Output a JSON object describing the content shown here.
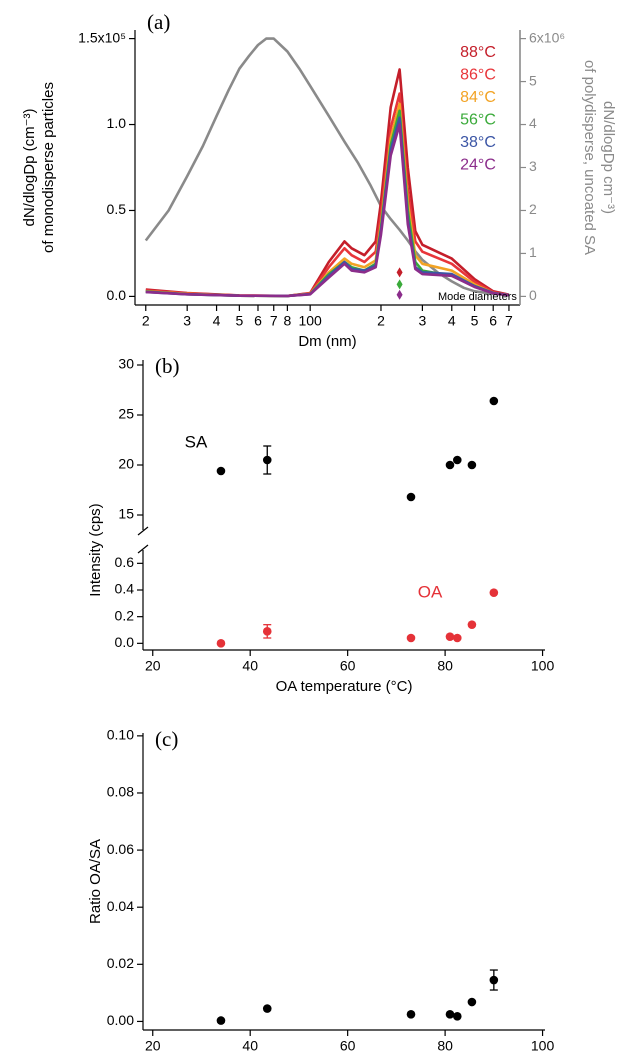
{
  "chart_data": [
    {
      "type": "line",
      "panel": "(a)",
      "xlabel": "Dm (nm)",
      "ylabel": [
        "dN/dlogDp (cm⁻³)",
        "of monodisperse particles"
      ],
      "y2label": [
        "dN/dlogDp cm⁻³)",
        "of polydisperse, uncoated SA"
      ],
      "xscale": "log",
      "xlim": [
        18,
        780
      ],
      "xticks": [
        {
          "value": 20,
          "label": "2"
        },
        {
          "value": 30,
          "label": "3"
        },
        {
          "value": 40,
          "label": "4"
        },
        {
          "value": 50,
          "label": "5"
        },
        {
          "value": 60,
          "label": "6"
        },
        {
          "value": 70,
          "label": "7"
        },
        {
          "value": 80,
          "label": "8"
        },
        100,
        {
          "value": 200,
          "label": "2"
        },
        {
          "value": 300,
          "label": "3"
        },
        {
          "value": 400,
          "label": "4"
        },
        {
          "value": 500,
          "label": "5"
        },
        {
          "value": 600,
          "label": "6"
        },
        {
          "value": 700,
          "label": "7"
        }
      ],
      "ylim": [
        -5000,
        155000
      ],
      "yticks": [
        {
          "value": 0,
          "label": "0.0"
        },
        {
          "value": 50000,
          "label": "0.5"
        },
        {
          "value": 100000,
          "label": "1.0"
        },
        {
          "value": 150000,
          "label": "1.5x10⁵"
        }
      ],
      "y2lim": [
        -200000,
        6200000
      ],
      "y2ticks": [
        0,
        {
          "value": 1000000,
          "label": "1"
        },
        {
          "value": 2000000,
          "label": "2"
        },
        {
          "value": 3000000,
          "label": "3"
        },
        {
          "value": 4000000,
          "label": "4"
        },
        {
          "value": 5000000,
          "label": "5"
        },
        {
          "value": 6000000,
          "label": "6x10⁶"
        }
      ],
      "y2color": "#8a8a8a",
      "x": [
        20,
        30,
        50,
        80,
        100,
        120,
        140,
        150,
        170,
        190,
        200,
        220,
        240,
        260,
        280,
        300,
        400,
        500,
        600,
        700
      ],
      "series": [
        {
          "color": "#8a8a8a",
          "axis": "y2",
          "x": [
            20,
            25,
            30,
            35,
            40,
            45,
            50,
            55,
            60,
            65,
            70,
            80,
            90,
            100,
            120,
            140,
            160,
            180,
            200,
            220,
            240,
            260,
            280,
            300,
            350,
            400,
            450,
            500,
            600,
            700
          ],
          "values": [
            1300000,
            2000000,
            2800000,
            3500000,
            4200000,
            4800000,
            5300000,
            5600000,
            5850000,
            6000000,
            6000000,
            5700000,
            5300000,
            4900000,
            4200000,
            3600000,
            3100000,
            2600000,
            2100000,
            1800000,
            1550000,
            1300000,
            1050000,
            850000,
            550000,
            350000,
            200000,
            120000,
            60000,
            30000
          ]
        },
        {
          "name": "88°C",
          "color": "#c41e2a",
          "values": [
            4000,
            2000,
            600,
            300,
            2000,
            20000,
            32000,
            28000,
            24000,
            32000,
            55000,
            110000,
            132000,
            75000,
            38000,
            30000,
            22000,
            10000,
            3000,
            1000
          ]
        },
        {
          "name": "86°C",
          "color": "#e8353a",
          "values": [
            3500,
            1800,
            500,
            300,
            1800,
            17000,
            28000,
            24000,
            20000,
            26000,
            48000,
            98000,
            118000,
            62000,
            32000,
            26000,
            19000,
            8500,
            2500,
            900
          ]
        },
        {
          "name": "84°C",
          "color": "#f2a324",
          "values": [
            3000,
            1500,
            400,
            300,
            1500,
            14000,
            22000,
            19000,
            17000,
            21000,
            42000,
            92000,
            112000,
            55000,
            24000,
            19000,
            15000,
            7000,
            2000,
            800
          ]
        },
        {
          "name": "56°C",
          "color": "#3aaa3a",
          "values": [
            2800,
            1300,
            400,
            300,
            1400,
            13000,
            20000,
            17000,
            15000,
            19000,
            40000,
            88000,
            108000,
            50000,
            20000,
            15000,
            12000,
            6000,
            2000,
            800
          ]
        },
        {
          "name": "38°C",
          "color": "#3b55a5",
          "values": [
            2600,
            1200,
            400,
            300,
            1300,
            12000,
            20000,
            16000,
            15000,
            18000,
            38000,
            85000,
            104000,
            45000,
            17000,
            14000,
            13000,
            6000,
            2000,
            800
          ]
        },
        {
          "name": "24°C",
          "color": "#8b2d8b",
          "values": [
            2500,
            1200,
            400,
            300,
            1200,
            11000,
            19000,
            15000,
            14000,
            17000,
            36000,
            82000,
            100000,
            42000,
            16000,
            13000,
            12000,
            5500,
            1800,
            700
          ]
        }
      ],
      "mode_diameters": {
        "label": "Mode diameters",
        "x": [
          240,
          240,
          240
        ],
        "values": [
          14000,
          7000,
          1000
        ],
        "colors": [
          "#c41e2a",
          "#3aaa3a",
          "#8b2d8b"
        ]
      }
    },
    {
      "type": "scatter",
      "panel": "(b)",
      "xlabel": "OA temperature (°C)",
      "ylabel": "Intensity (cps)",
      "xlim": [
        18,
        100.5
      ],
      "xticks": [
        20,
        40,
        60,
        80,
        100
      ],
      "ylim": [
        13.5,
        30.5
      ],
      "yticks": [
        15,
        20,
        25,
        30
      ],
      "ylim_lower": [
        -0.05,
        0.7
      ],
      "yticks_lower": [
        {
          "value": 0,
          "label": "0.0"
        },
        0.2,
        0.4,
        0.6
      ],
      "series": [
        {
          "name": "SA",
          "color": "#000000",
          "x": [
            34,
            43.5,
            73,
            81,
            82.5,
            85.5,
            90
          ],
          "values": [
            19.4,
            20.5,
            16.8,
            20,
            20.5,
            20,
            26.4
          ],
          "errors": [
            null,
            1.4,
            null,
            null,
            null,
            null,
            null
          ]
        },
        {
          "name": "OA",
          "color": "#e53238",
          "x": [
            34,
            43.5,
            73,
            81,
            82.5,
            85.5,
            90
          ],
          "values": [
            0.0,
            0.09,
            0.04,
            0.05,
            0.04,
            0.14,
            0.38
          ],
          "errors": [
            null,
            0.05,
            null,
            null,
            null,
            null,
            null
          ]
        }
      ]
    },
    {
      "type": "scatter",
      "panel": "(c)",
      "xlabel": "OA temperature (°C)",
      "ylabel": "Ratio OA/SA",
      "xlim": [
        18,
        100.5
      ],
      "xticks": [
        20,
        40,
        60,
        80,
        100
      ],
      "ylim": [
        -0.003,
        0.101
      ],
      "yticks": [
        {
          "value": 0,
          "label": "0.00"
        },
        0.02,
        0.04,
        0.06,
        0.08,
        {
          "value": 0.1,
          "label": "0.10"
        }
      ],
      "series": [
        {
          "color": "#000000",
          "x": [
            34,
            43.5,
            73,
            81,
            82.5,
            85.5,
            90
          ],
          "values": [
            0.0003,
            0.0045,
            0.0025,
            0.0025,
            0.0018,
            0.0068,
            0.0145
          ],
          "errors": [
            null,
            null,
            null,
            null,
            null,
            null,
            0.0035
          ]
        }
      ]
    }
  ]
}
